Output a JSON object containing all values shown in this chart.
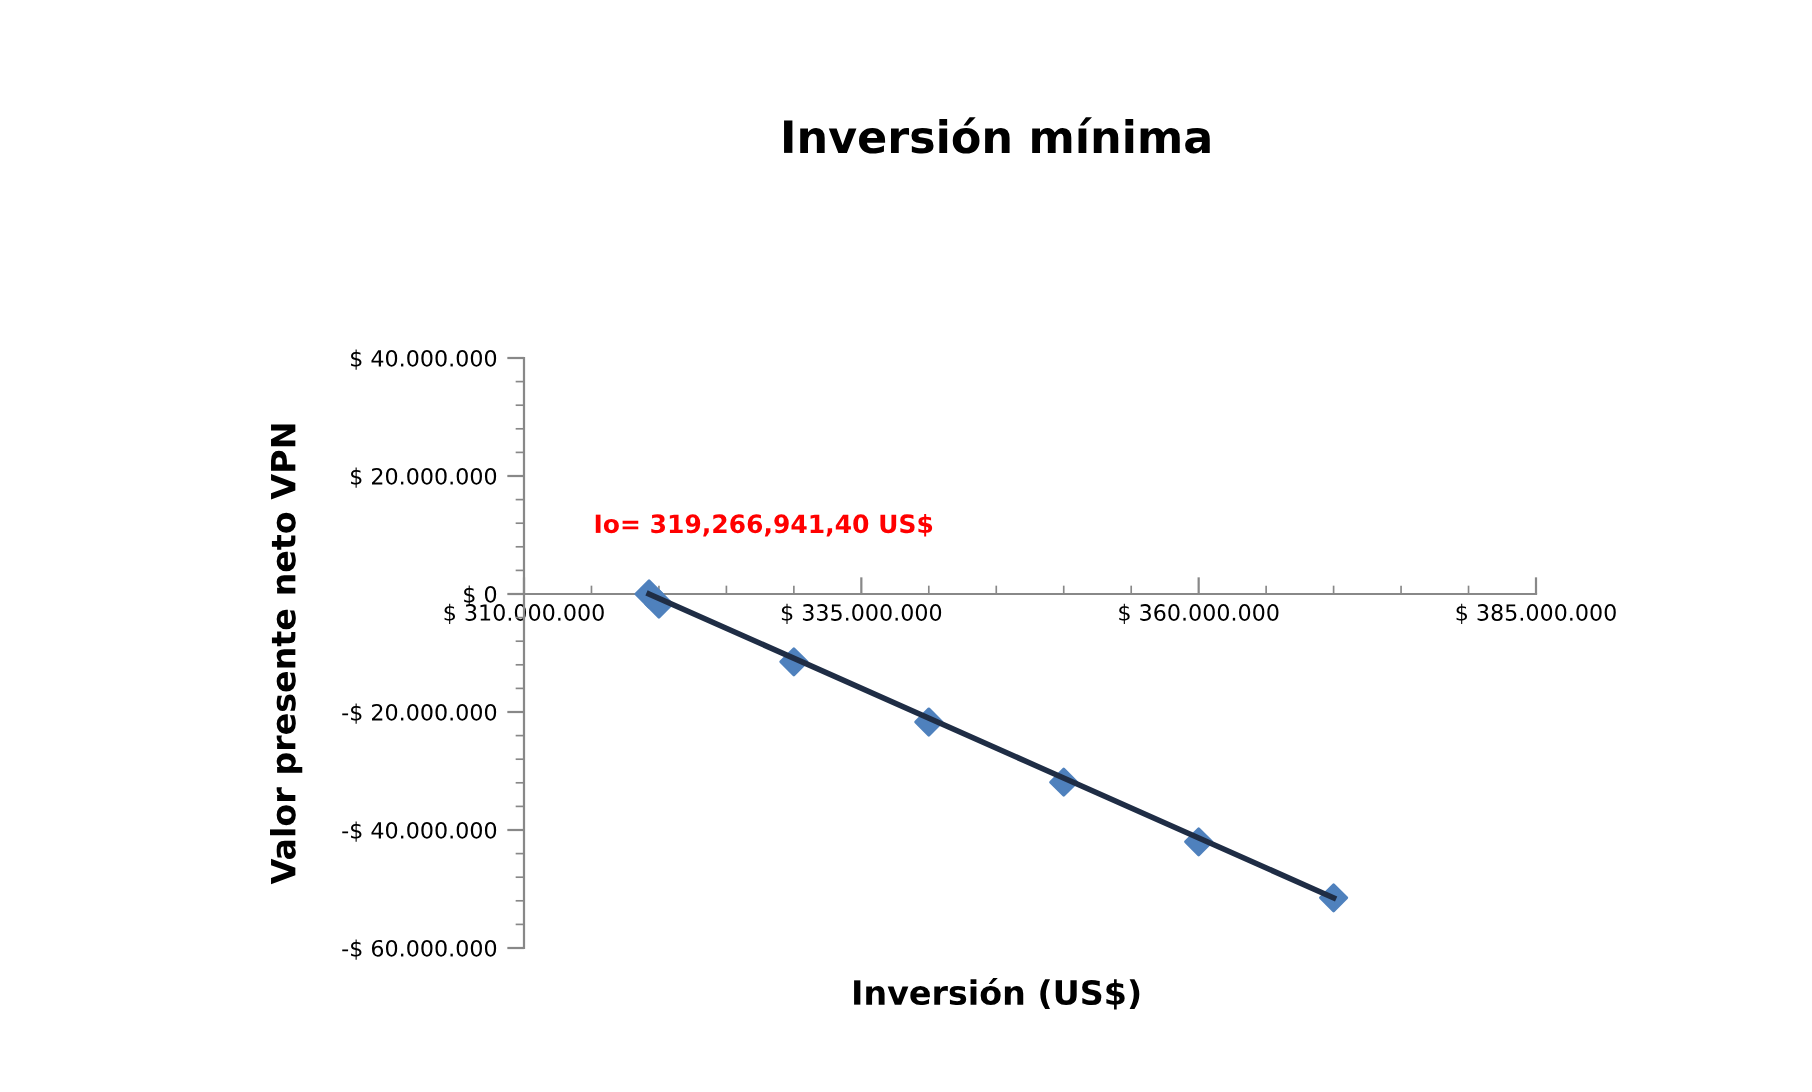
{
  "chart_data": {
    "type": "scatter",
    "title": "Inversión mínima",
    "xlabel": "Inversión (US$)",
    "ylabel": "Valor presente neto VPN",
    "grid": false,
    "legend": false,
    "series": [
      {
        "marker": "diamond",
        "color": "#4f81bd",
        "x": [
          319266941.4,
          320000000,
          330000000,
          340000000,
          350000000,
          360000000,
          370000000
        ],
        "values": [
          0,
          -1700000,
          -11500000,
          -21700000,
          -31900000,
          -42000000,
          -51500000
        ]
      },
      {
        "type": "line",
        "marker": "none",
        "color": "#1f2d45",
        "x": [
          319266941.4,
          370000000
        ],
        "values": [
          0,
          -51500000
        ]
      }
    ],
    "xlim": [
      310000000,
      385000000
    ],
    "xticks": [
      {
        "value": 310000000,
        "label": "$ 310.000.000"
      },
      {
        "value": 335000000,
        "label": "$ 335.000.000"
      },
      {
        "value": 360000000,
        "label": "$ 360.000.000"
      },
      {
        "value": 385000000,
        "label": "$ 385.000.000"
      }
    ],
    "ylim": [
      -60000000,
      40000000
    ],
    "yticks": [
      {
        "value": -60000000,
        "label": "-$ 60.000.000"
      },
      {
        "value": -40000000,
        "label": "-$ 40.000.000"
      },
      {
        "value": -20000000,
        "label": "-$ 20.000.000"
      },
      {
        "value": 0,
        "label": "$ 0"
      },
      {
        "value": 20000000,
        "label": "$ 20.000.000"
      },
      {
        "value": 40000000,
        "label": "$ 40.000.000"
      }
    ],
    "annotations": [
      {
        "text": "Io= 319,266,941,40 US$",
        "x": 319266941.4,
        "y": 0
      }
    ]
  }
}
